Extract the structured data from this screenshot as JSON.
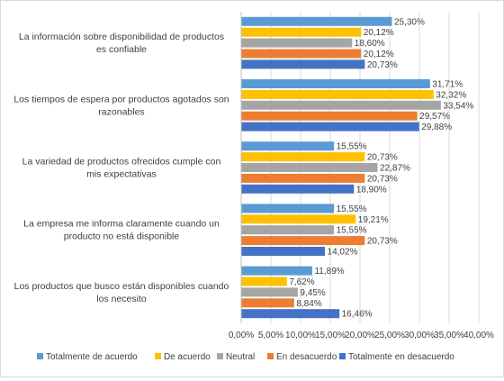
{
  "chart_data": {
    "type": "bar",
    "orientation": "horizontal",
    "title": "",
    "xlabel": "",
    "ylabel": "",
    "xlim": [
      0,
      40
    ],
    "x_ticks": [
      "0,00%",
      "5,00%",
      "10,00%",
      "15,00%",
      "20,00%",
      "25,00%",
      "30,00%",
      "35,00%",
      "40,00%"
    ],
    "grid": true,
    "legend_position": "bottom",
    "categories": [
      {
        "lines": [
          "La información sobre disponibilidad de productos",
          "es confiable"
        ]
      },
      {
        "lines": [
          "Los tiempos de espera por productos agotados son",
          "razonables"
        ]
      },
      {
        "lines": [
          "La variedad de productos ofrecidos cumple con",
          "mis expectativas"
        ]
      },
      {
        "lines": [
          "La empresa me informa claramente cuando un",
          "producto no está disponible"
        ]
      },
      {
        "lines": [
          "Los productos que busco están disponibles cuando",
          "los necesito"
        ]
      }
    ],
    "series": [
      {
        "name": "Totalmente de acuerdo",
        "color": "#5B9BD5",
        "values": [
          25.3,
          31.71,
          15.55,
          15.55,
          11.89
        ],
        "labels": [
          "25,30%",
          "31,71%",
          "15,55%",
          "15,55%",
          "11,89%"
        ]
      },
      {
        "name": "De acuerdo",
        "color": "#FFC000",
        "values": [
          20.12,
          32.32,
          20.73,
          19.21,
          7.62
        ],
        "labels": [
          "20,12%",
          "32,32%",
          "20,73%",
          "19,21%",
          "7,62%"
        ]
      },
      {
        "name": "Neutral",
        "color": "#A5A5A5",
        "values": [
          18.6,
          33.54,
          22.87,
          15.55,
          9.45
        ],
        "labels": [
          "18,60%",
          "33,54%",
          "22,87%",
          "15,55%",
          "9,45%"
        ]
      },
      {
        "name": "En desacuerdo",
        "color": "#ED7D31",
        "values": [
          20.12,
          29.57,
          20.73,
          20.73,
          8.84
        ],
        "labels": [
          "20,12%",
          "29,57%",
          "20,73%",
          "20,73%",
          "8,84%"
        ]
      },
      {
        "name": "Totalmente en desacuerdo",
        "color": "#4472C4",
        "values": [
          20.73,
          29.88,
          18.9,
          14.02,
          16.46
        ],
        "labels": [
          "20,73%",
          "29,88%",
          "18,90%",
          "14,02%",
          "16,46%"
        ]
      }
    ]
  }
}
